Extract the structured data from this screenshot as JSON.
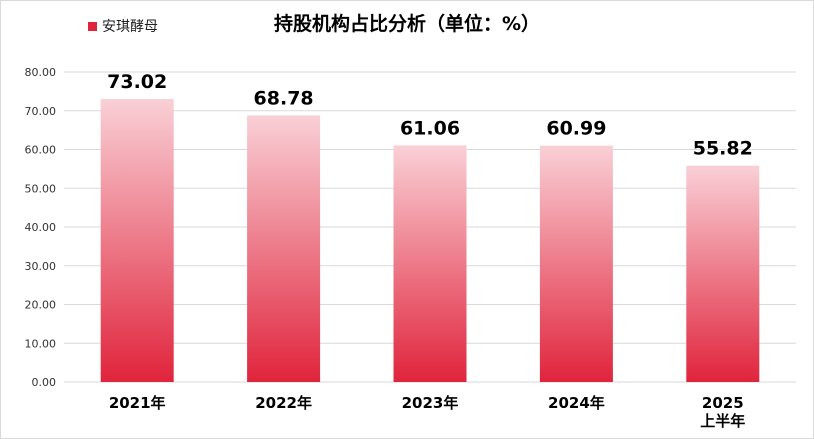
{
  "chart_data": {
    "type": "bar",
    "title": "持股机构占比分析（单位：%）",
    "categories": [
      [
        "2021年"
      ],
      [
        "2022年"
      ],
      [
        "2023年"
      ],
      [
        "2024年"
      ],
      [
        "2025",
        "上半年"
      ]
    ],
    "series": [
      {
        "name": "安琪酵母",
        "values": [
          73.02,
          68.78,
          61.06,
          60.99,
          55.82
        ]
      }
    ],
    "data_labels": [
      "73.02",
      "68.78",
      "61.06",
      "60.99",
      "55.82"
    ],
    "yticks": [
      "0.00",
      "10.00",
      "20.00",
      "30.00",
      "40.00",
      "50.00",
      "60.00",
      "70.00",
      "80.00"
    ],
    "ylim": [
      0,
      80
    ],
    "grid": true,
    "legend_position": "top-left",
    "colors": {
      "bar_bottom": "#e0243c",
      "bar_top": "#f9d0d6",
      "grid": "#d9d9d9",
      "legend": "#e0243c"
    }
  }
}
